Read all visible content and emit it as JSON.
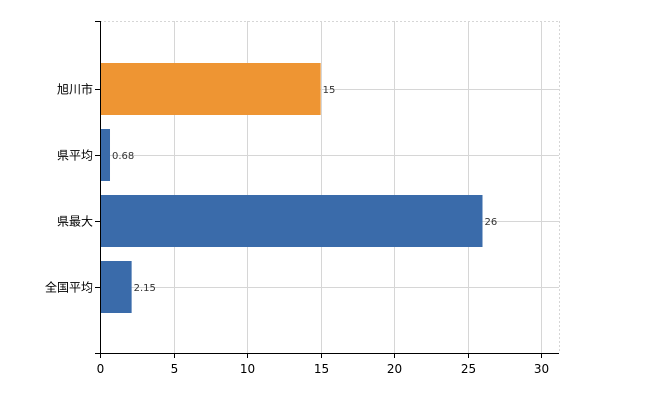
{
  "chart_data": {
    "type": "bar",
    "orientation": "horizontal",
    "title": "",
    "xlabel": "",
    "ylabel": "",
    "categories": [
      "旭川市",
      "県平均",
      "県最大",
      "全国平均"
    ],
    "values": [
      15,
      0.68,
      26,
      2.15
    ],
    "value_labels": [
      "15",
      "0.68",
      "26",
      "2.15"
    ],
    "bar_colors": [
      "#EE9533",
      "#3A6BAA",
      "#3A6BAA",
      "#3A6BAA"
    ],
    "xlim": [
      0,
      31.2
    ],
    "xticks": [
      0,
      5,
      10,
      15,
      20,
      25,
      30
    ],
    "grid": true,
    "legend": "none"
  }
}
